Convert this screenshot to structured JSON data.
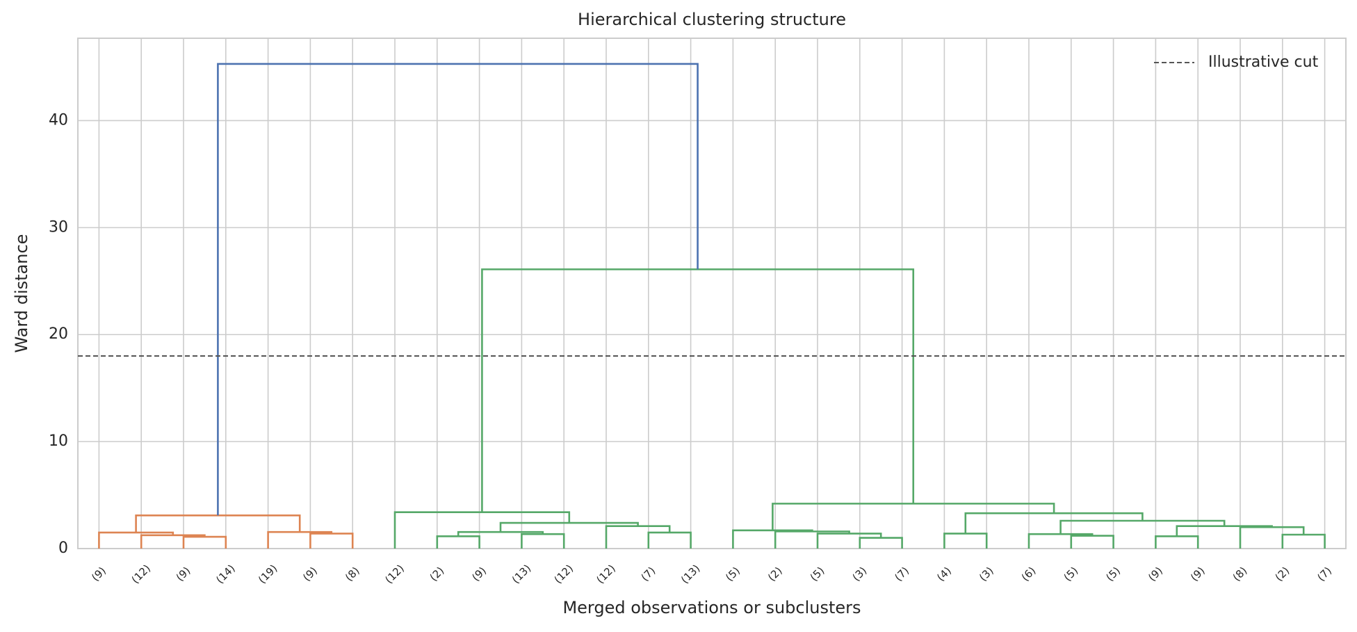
{
  "chart_data": {
    "type": "dendrogram",
    "title": "Hierarchical clustering structure",
    "xlabel": "Merged observations or subclusters",
    "ylabel": "Ward distance",
    "xlim": [
      0,
      300
    ],
    "ylim": [
      0,
      47.7
    ],
    "yticks": [
      0,
      10,
      20,
      30,
      40
    ],
    "xticks": [
      {
        "value": 5,
        "label": "(9)"
      },
      {
        "value": 15,
        "label": "(12)"
      },
      {
        "value": 25,
        "label": "(9)"
      },
      {
        "value": 35,
        "label": "(14)"
      },
      {
        "value": 45,
        "label": "(19)"
      },
      {
        "value": 55,
        "label": "(9)"
      },
      {
        "value": 65,
        "label": "(8)"
      },
      {
        "value": 75,
        "label": "(12)"
      },
      {
        "value": 85,
        "label": "(2)"
      },
      {
        "value": 95,
        "label": "(9)"
      },
      {
        "value": 105,
        "label": "(13)"
      },
      {
        "value": 115,
        "label": "(12)"
      },
      {
        "value": 125,
        "label": "(12)"
      },
      {
        "value": 135,
        "label": "(7)"
      },
      {
        "value": 145,
        "label": "(13)"
      },
      {
        "value": 155,
        "label": "(5)"
      },
      {
        "value": 165,
        "label": "(2)"
      },
      {
        "value": 175,
        "label": "(5)"
      },
      {
        "value": 185,
        "label": "(3)"
      },
      {
        "value": 195,
        "label": "(7)"
      },
      {
        "value": 205,
        "label": "(4)"
      },
      {
        "value": 215,
        "label": "(3)"
      },
      {
        "value": 225,
        "label": "(6)"
      },
      {
        "value": 235,
        "label": "(5)"
      },
      {
        "value": 245,
        "label": "(5)"
      },
      {
        "value": 255,
        "label": "(9)"
      },
      {
        "value": 265,
        "label": "(9)"
      },
      {
        "value": 275,
        "label": "(8)"
      },
      {
        "value": 285,
        "label": "(2)"
      },
      {
        "value": 295,
        "label": "(7)"
      }
    ],
    "grid": true,
    "links": [
      {
        "color": "#dd8452",
        "x": [
          25,
          25,
          35,
          35
        ],
        "y": [
          0,
          1.1,
          1.1,
          0
        ]
      },
      {
        "color": "#dd8452",
        "x": [
          15,
          15,
          30,
          30
        ],
        "y": [
          0,
          1.25,
          1.25,
          1.1
        ]
      },
      {
        "color": "#dd8452",
        "x": [
          5,
          5,
          22.5,
          22.5
        ],
        "y": [
          0,
          1.5,
          1.5,
          1.25
        ]
      },
      {
        "color": "#dd8452",
        "x": [
          55,
          55,
          65,
          65
        ],
        "y": [
          0,
          1.4,
          1.4,
          0
        ]
      },
      {
        "color": "#dd8452",
        "x": [
          45,
          45,
          60,
          60
        ],
        "y": [
          0,
          1.55,
          1.55,
          1.4
        ]
      },
      {
        "color": "#dd8452",
        "x": [
          13.75,
          13.75,
          52.5,
          52.5
        ],
        "y": [
          1.5,
          3.1,
          3.1,
          1.55
        ]
      },
      {
        "color": "#55a868",
        "x": [
          85,
          85,
          95,
          95
        ],
        "y": [
          0,
          1.15,
          1.15,
          0
        ]
      },
      {
        "color": "#55a868",
        "x": [
          105,
          105,
          115,
          115
        ],
        "y": [
          0,
          1.35,
          1.35,
          0
        ]
      },
      {
        "color": "#55a868",
        "x": [
          90,
          90,
          110,
          110
        ],
        "y": [
          1.15,
          1.55,
          1.55,
          1.35
        ]
      },
      {
        "color": "#55a868",
        "x": [
          135,
          135,
          145,
          145
        ],
        "y": [
          0,
          1.5,
          1.5,
          0
        ]
      },
      {
        "color": "#55a868",
        "x": [
          125,
          125,
          140,
          140
        ],
        "y": [
          0,
          2.1,
          2.1,
          1.5
        ]
      },
      {
        "color": "#55a868",
        "x": [
          100,
          100,
          132.5,
          132.5
        ],
        "y": [
          1.55,
          2.4,
          2.4,
          2.1
        ]
      },
      {
        "color": "#55a868",
        "x": [
          75,
          75,
          116.25,
          116.25
        ],
        "y": [
          0,
          3.4,
          3.4,
          2.4
        ]
      },
      {
        "color": "#55a868",
        "x": [
          185,
          185,
          195,
          195
        ],
        "y": [
          0,
          1,
          1,
          0
        ]
      },
      {
        "color": "#55a868",
        "x": [
          175,
          175,
          190,
          190
        ],
        "y": [
          0,
          1.4,
          1.4,
          1
        ]
      },
      {
        "color": "#55a868",
        "x": [
          165,
          165,
          182.5,
          182.5
        ],
        "y": [
          0,
          1.6,
          1.6,
          1.4
        ]
      },
      {
        "color": "#55a868",
        "x": [
          155,
          155,
          173.75,
          173.75
        ],
        "y": [
          0,
          1.7,
          1.7,
          1.6
        ]
      },
      {
        "color": "#55a868",
        "x": [
          205,
          205,
          215,
          215
        ],
        "y": [
          0,
          1.4,
          1.4,
          0
        ]
      },
      {
        "color": "#55a868",
        "x": [
          235,
          235,
          245,
          245
        ],
        "y": [
          0,
          1.2,
          1.2,
          0
        ]
      },
      {
        "color": "#55a868",
        "x": [
          225,
          225,
          240,
          240
        ],
        "y": [
          0,
          1.35,
          1.35,
          1.2
        ]
      },
      {
        "color": "#55a868",
        "x": [
          255,
          255,
          265,
          265
        ],
        "y": [
          0,
          1.15,
          1.15,
          0
        ]
      },
      {
        "color": "#55a868",
        "x": [
          285,
          285,
          295,
          295
        ],
        "y": [
          0,
          1.3,
          1.3,
          0
        ]
      },
      {
        "color": "#55a868",
        "x": [
          275,
          275,
          290,
          290
        ],
        "y": [
          0,
          2,
          2,
          1.3
        ]
      },
      {
        "color": "#55a868",
        "x": [
          260,
          260,
          282.5,
          282.5
        ],
        "y": [
          1.15,
          2.1,
          2.1,
          2
        ]
      },
      {
        "color": "#55a868",
        "x": [
          232.5,
          232.5,
          271.25,
          271.25
        ],
        "y": [
          1.35,
          2.6,
          2.6,
          2.1
        ]
      },
      {
        "color": "#55a868",
        "x": [
          210,
          210,
          251.875,
          251.875
        ],
        "y": [
          1.4,
          3.3,
          3.3,
          2.6
        ]
      },
      {
        "color": "#55a868",
        "x": [
          164.375,
          164.375,
          230.9375,
          230.9375
        ],
        "y": [
          1.7,
          4.2,
          4.2,
          3.3
        ]
      },
      {
        "color": "#55a868",
        "x": [
          95.625,
          95.625,
          197.65625,
          197.65625
        ],
        "y": [
          3.4,
          26.1,
          26.1,
          4.2
        ]
      },
      {
        "color": "#4c72b0",
        "x": [
          33.125,
          33.125,
          146.640625,
          146.640625
        ],
        "y": [
          3.1,
          45.3,
          45.3,
          26.1
        ]
      }
    ],
    "cut": {
      "name": "Illustrative cut",
      "value": 18,
      "color": "#555555"
    },
    "legend": "upper right"
  }
}
